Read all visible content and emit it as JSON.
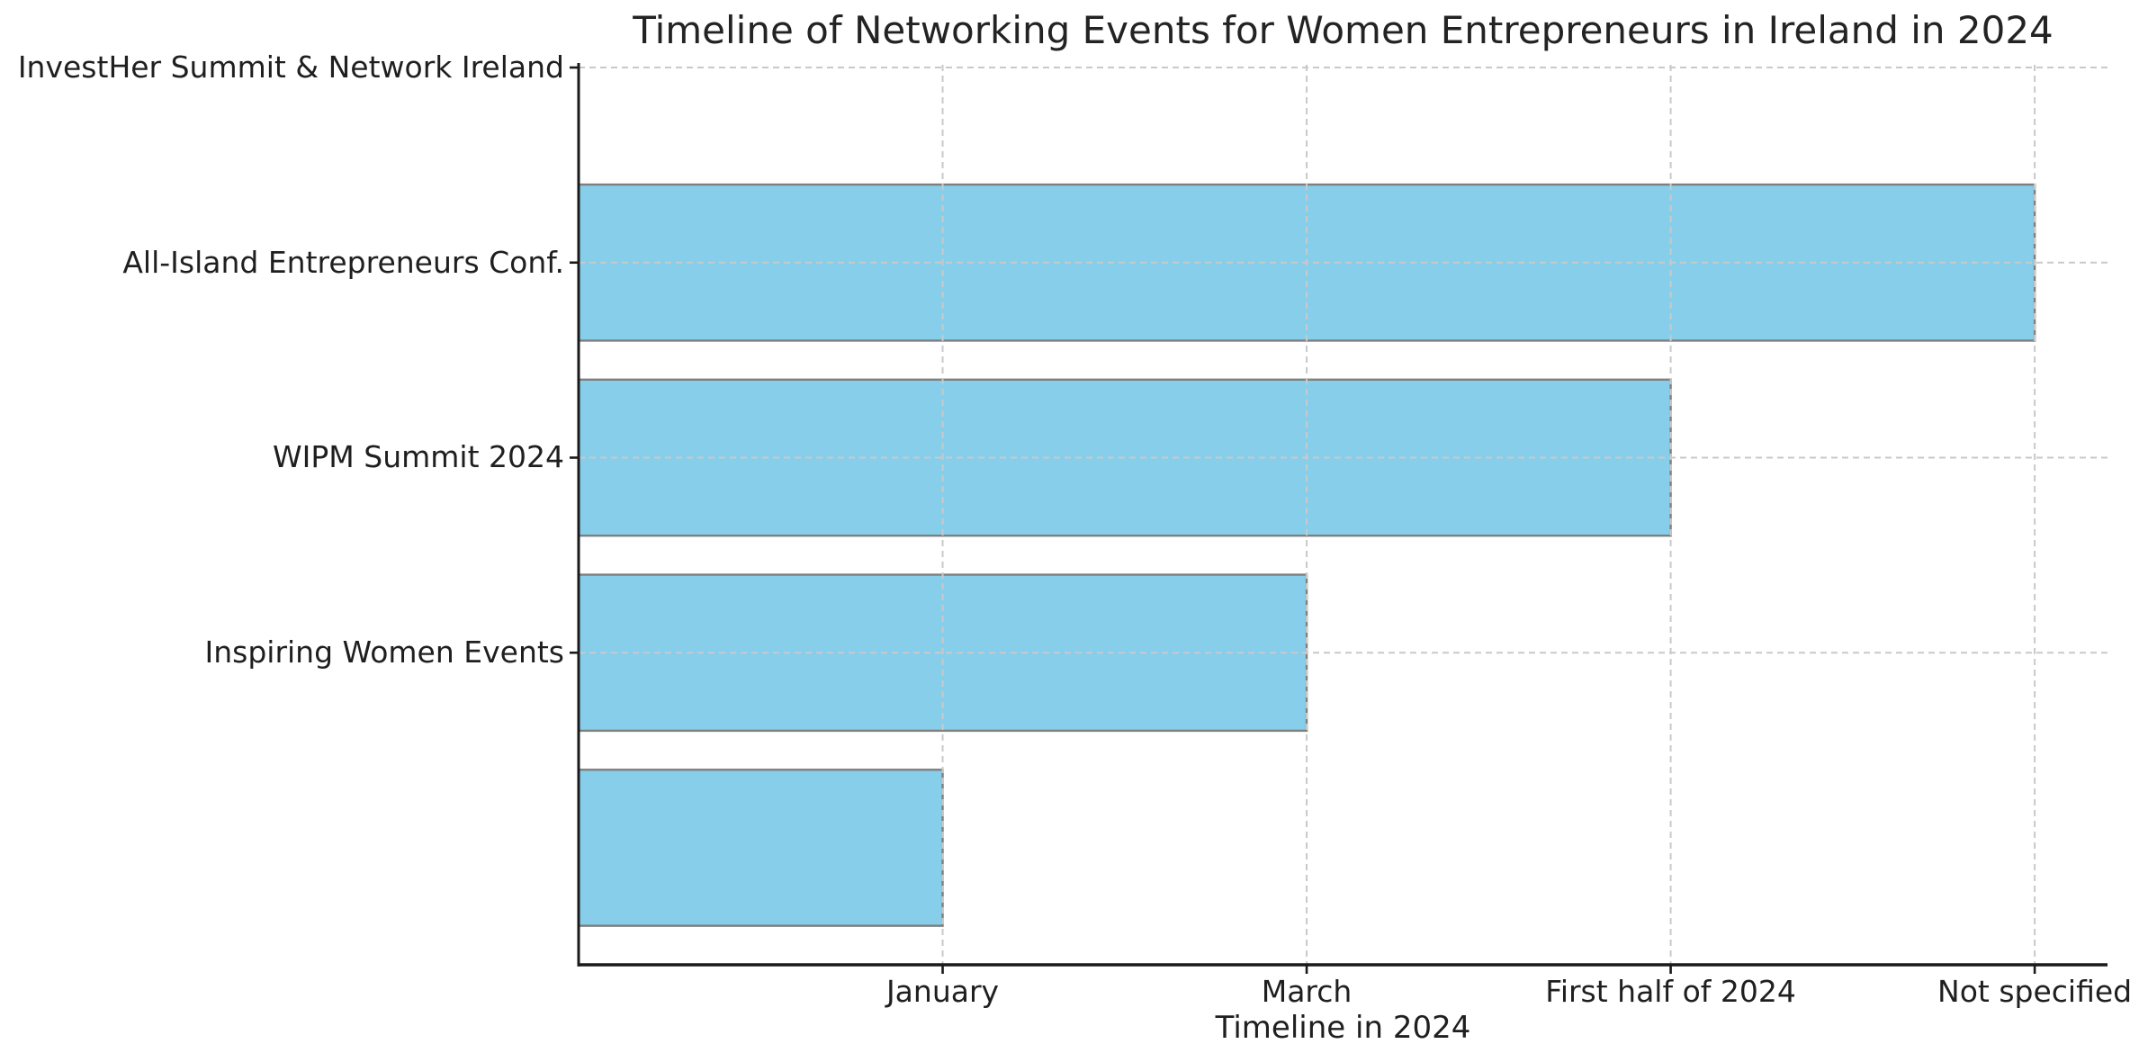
{
  "chart_data": {
    "type": "bar",
    "orientation": "horizontal",
    "title": "Timeline of Networking Events for Women Entrepreneurs in Ireland in 2024",
    "xlabel": "Timeline in 2024",
    "rows": [
      {
        "label": "InvestHer Summit & Network Ireland",
        "value": 0,
        "tick": true
      },
      {
        "label": "All-Island Entrepreneurs Conf.",
        "value": 4,
        "tick": true
      },
      {
        "label": "WIPM Summit 2024",
        "value": 3,
        "tick": true
      },
      {
        "label": "Inspiring Women Events",
        "value": 2,
        "tick": true
      },
      {
        "label": "",
        "value": 1,
        "tick": false
      }
    ],
    "xticks": [
      {
        "label": "January",
        "value": 1
      },
      {
        "label": "March",
        "value": 2
      },
      {
        "label": "First half of 2024",
        "value": 3
      },
      {
        "label": "Not specified",
        "value": 4
      }
    ],
    "xlim": [
      0,
      4.2
    ],
    "bar_height_units": 0.8,
    "grid": "dashed",
    "legend": "none",
    "colors": {
      "bar_fill": "#87CEEB",
      "bar_edge": "#7f7f7f",
      "grid": "#c9c9c9",
      "spine": "#1a1a1a",
      "text": "#1f1f1f",
      "background": "#ffffff"
    }
  }
}
